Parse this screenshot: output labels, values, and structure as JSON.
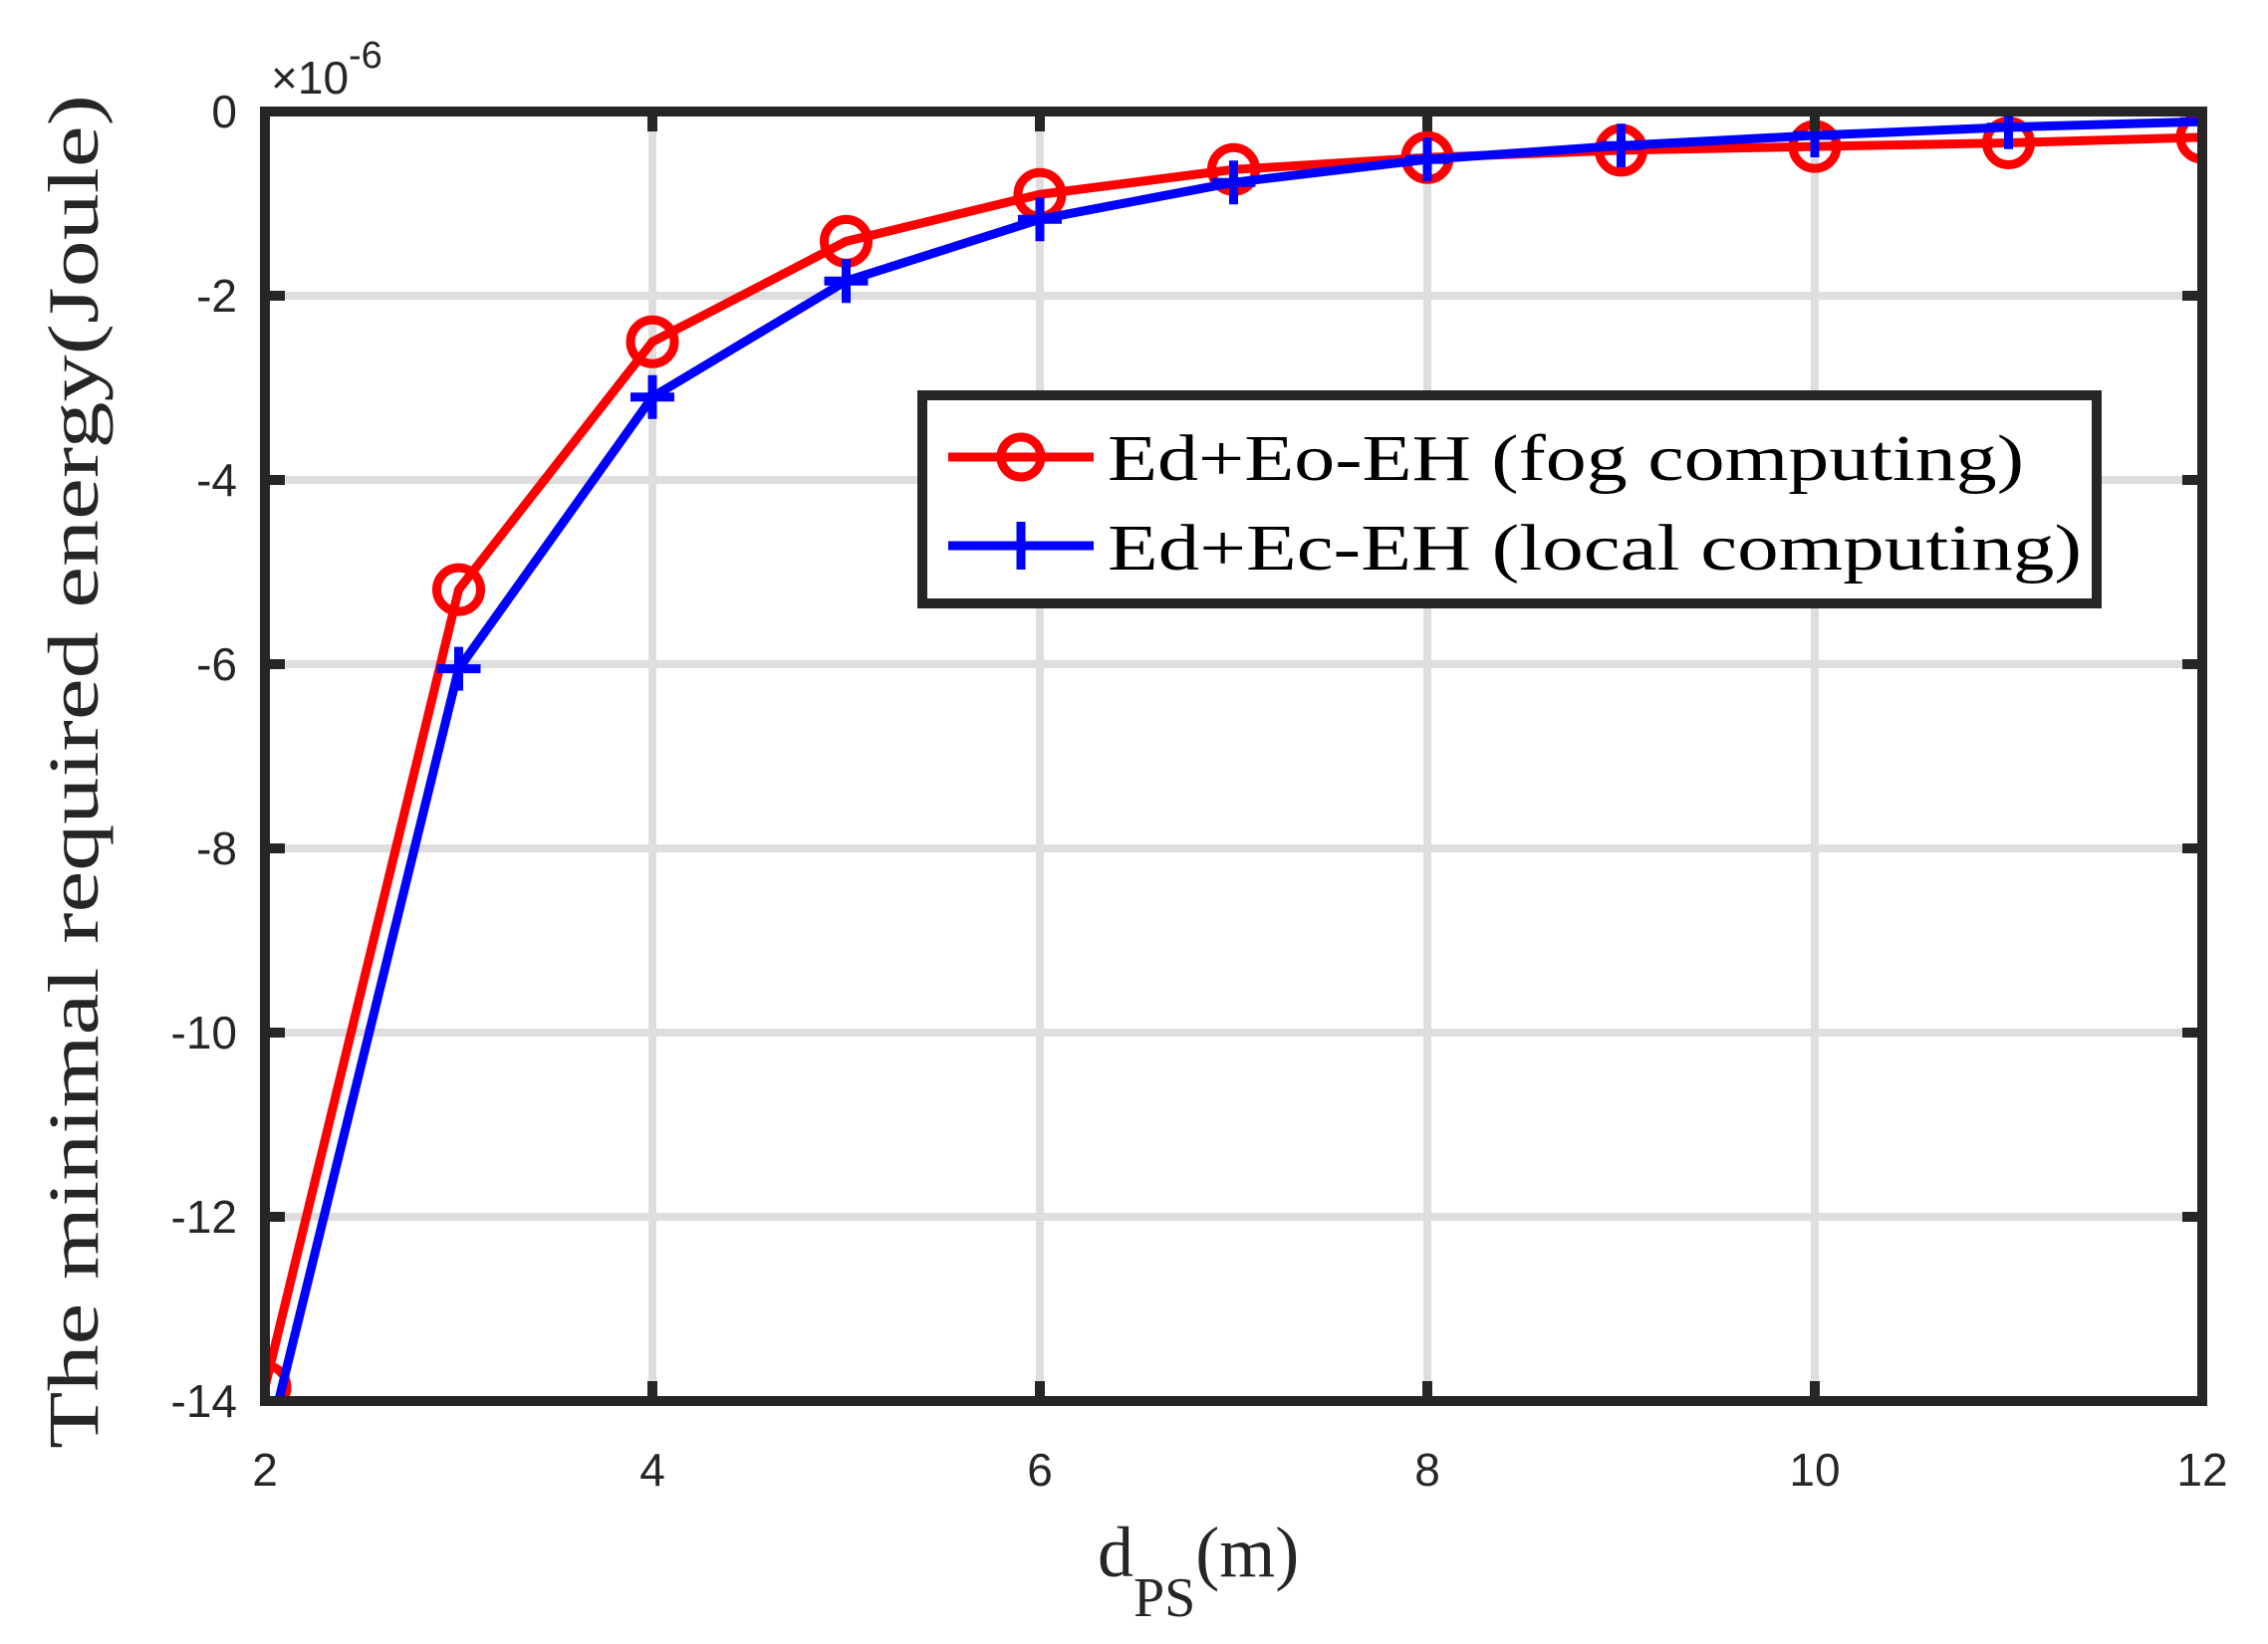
{
  "chart_data": {
    "type": "line",
    "title": "",
    "xlabel": "d_PS(m)",
    "xlabel_parts": {
      "main": "d",
      "sub": "PS",
      "unit": "(m)"
    },
    "ylabel": "The minimal required energy(Joule)",
    "y_exponent": "×10",
    "y_exponent_power": "-6",
    "xlim": [
      2,
      12
    ],
    "ylim": [
      -14,
      0
    ],
    "xticks": [
      2,
      4,
      6,
      8,
      10,
      12
    ],
    "yticks": [
      0,
      -2,
      -4,
      -6,
      -8,
      -10,
      -12,
      -14
    ],
    "xtick_labels": [
      "2",
      "4",
      "6",
      "8",
      "10",
      "12"
    ],
    "ytick_labels": [
      "0",
      "-2",
      "-4",
      "-6",
      "-8",
      "-10",
      "-12",
      "-14"
    ],
    "grid": true,
    "legend_position": "upper right (inside)",
    "x": [
      2,
      3,
      4,
      5,
      6,
      7,
      8,
      9,
      10,
      11,
      12
    ],
    "series": [
      {
        "name": "Ed+Eo-EH (fog computing)",
        "color": "#ff0000",
        "marker": "circle",
        "values": [
          -13.85,
          -5.19,
          -2.5,
          -1.41,
          -0.9,
          -0.63,
          -0.5,
          -0.42,
          -0.38,
          -0.34,
          -0.28
        ]
      },
      {
        "name": "Ed+Ec-EH (local computing)",
        "color": "#0000ff",
        "marker": "plus",
        "values": [
          -14.6,
          -6.05,
          -3.1,
          -1.84,
          -1.17,
          -0.77,
          -0.52,
          -0.37,
          -0.26,
          -0.17,
          -0.11
        ]
      }
    ]
  },
  "colors": {
    "axis": "#262626",
    "grid": "#dedede",
    "legend_border": "#262626",
    "background": "#ffffff"
  }
}
